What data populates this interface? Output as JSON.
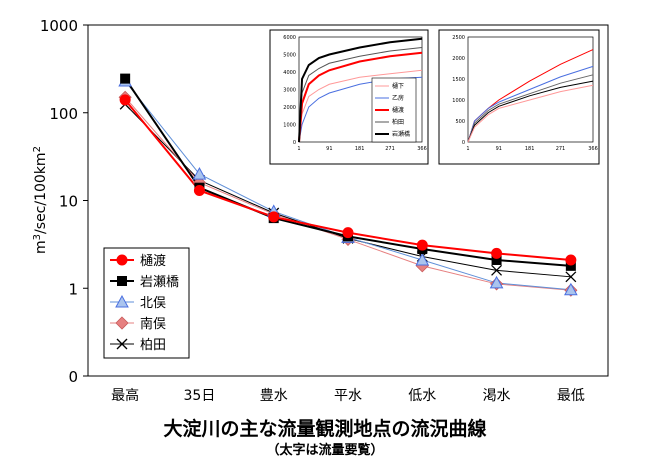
{
  "title": "大淀川の主な流量観測地点の流況曲線",
  "subtitle": "（太字は流量要覧）",
  "chart_data": [
    {
      "type": "line",
      "title": "大淀川の主な流量観測地点の流況曲線",
      "ylabel": "m3/sec/100km2",
      "ylabel_base": "m",
      "ylabel_sup1": "3",
      "ylabel_mid": "/sec/100km",
      "ylabel_sup2": "2",
      "yscale": "log",
      "ylim": [
        0.1,
        1000
      ],
      "ytick_values": [
        0.1,
        1,
        10,
        100,
        1000
      ],
      "ytick_labels": [
        "0",
        "1",
        "10",
        "100",
        "1000"
      ],
      "categories": [
        "最高",
        "35日",
        "豊水",
        "平水",
        "低水",
        "渇水",
        "最低"
      ],
      "grid": false,
      "legend_position": "lower-left",
      "series": [
        {
          "name": "樋渡",
          "color": "#ff0000",
          "marker": "circle",
          "line_width": 2,
          "values": [
            140,
            13,
            6.5,
            4.3,
            3.1,
            2.5,
            2.1
          ]
        },
        {
          "name": "岩瀬橋",
          "color": "#000000",
          "marker": "square",
          "line_width": 2,
          "values": [
            245,
            14,
            6.3,
            3.9,
            2.8,
            2.1,
            1.8
          ]
        },
        {
          "name": "北俣",
          "color": "#5f8fd8",
          "marker": "triangle",
          "line_width": 1,
          "values": [
            230,
            20,
            7.5,
            3.8,
            2.1,
            1.15,
            0.96
          ]
        },
        {
          "name": "南俣",
          "color": "#e68080",
          "marker": "diamond",
          "line_width": 1,
          "values": [
            150,
            16,
            7.0,
            3.6,
            1.8,
            1.12,
            0.95
          ]
        },
        {
          "name": "柏田",
          "color": "#000000",
          "marker": "x",
          "line_width": 1,
          "values": [
            125,
            17,
            7.2,
            3.7,
            2.3,
            1.6,
            1.35
          ]
        }
      ]
    },
    {
      "type": "line",
      "ytick_labels": [
        "0",
        "1000",
        "2000",
        "3000",
        "4000",
        "5000",
        "6000"
      ],
      "ylim": [
        0,
        6000
      ],
      "xtick_labels": [
        "1",
        "91",
        "181",
        "271",
        "366"
      ],
      "xlim": [
        1,
        366
      ],
      "series": [
        {
          "name": "樋下",
          "color": "#ff9999",
          "line_width": 1,
          "values": [
            [
              1,
              0
            ],
            [
              10,
              1600
            ],
            [
              30,
              2600
            ],
            [
              60,
              3000
            ],
            [
              91,
              3300
            ],
            [
              181,
              3700
            ],
            [
              271,
              3900
            ],
            [
              366,
              4100
            ]
          ]
        },
        {
          "name": "乙房",
          "color": "#4a6fe0",
          "line_width": 1,
          "values": [
            [
              1,
              0
            ],
            [
              10,
              1000
            ],
            [
              30,
              2000
            ],
            [
              60,
              2500
            ],
            [
              91,
              2800
            ],
            [
              181,
              3300
            ],
            [
              271,
              3600
            ],
            [
              366,
              3700
            ]
          ]
        },
        {
          "name": "樋渡",
          "color": "#ff0000",
          "line_width": 2,
          "values": [
            [
              1,
              0
            ],
            [
              10,
              2200
            ],
            [
              30,
              3300
            ],
            [
              60,
              3800
            ],
            [
              91,
              4100
            ],
            [
              181,
              4600
            ],
            [
              271,
              4900
            ],
            [
              366,
              5100
            ]
          ]
        },
        {
          "name": "柏田",
          "color": "#555555",
          "line_width": 1,
          "values": [
            [
              1,
              0
            ],
            [
              10,
              2800
            ],
            [
              30,
              3800
            ],
            [
              60,
              4200
            ],
            [
              91,
              4500
            ],
            [
              181,
              4900
            ],
            [
              271,
              5200
            ],
            [
              366,
              5400
            ]
          ]
        },
        {
          "name": "岩瀬橋",
          "color": "#000000",
          "line_width": 2,
          "values": [
            [
              1,
              0
            ],
            [
              10,
              3600
            ],
            [
              30,
              4400
            ],
            [
              60,
              4800
            ],
            [
              91,
              5000
            ],
            [
              181,
              5400
            ],
            [
              271,
              5700
            ],
            [
              366,
              5900
            ]
          ]
        }
      ]
    },
    {
      "type": "line",
      "ytick_labels": [
        "0",
        "500",
        "1000",
        "1500",
        "2000",
        "2500"
      ],
      "ylim": [
        0,
        2500
      ],
      "xtick_labels": [
        "1",
        "91",
        "181",
        "271",
        "366"
      ],
      "xlim": [
        1,
        366
      ],
      "series": [
        {
          "color": "#ff0000",
          "line_width": 1,
          "values": [
            [
              1,
              0
            ],
            [
              20,
              500
            ],
            [
              60,
              800
            ],
            [
              91,
              1000
            ],
            [
              181,
              1450
            ],
            [
              271,
              1850
            ],
            [
              366,
              2200
            ]
          ]
        },
        {
          "color": "#4a6fe0",
          "line_width": 1,
          "values": [
            [
              1,
              0
            ],
            [
              20,
              500
            ],
            [
              60,
              800
            ],
            [
              91,
              950
            ],
            [
              181,
              1250
            ],
            [
              271,
              1550
            ],
            [
              366,
              1800
            ]
          ]
        },
        {
          "color": "#666666",
          "line_width": 1,
          "values": [
            [
              1,
              0
            ],
            [
              20,
              450
            ],
            [
              60,
              750
            ],
            [
              91,
              900
            ],
            [
              181,
              1150
            ],
            [
              271,
              1400
            ],
            [
              366,
              1600
            ]
          ]
        },
        {
          "color": "#000000",
          "line_width": 1,
          "values": [
            [
              1,
              0
            ],
            [
              20,
              400
            ],
            [
              60,
              700
            ],
            [
              91,
              850
            ],
            [
              181,
              1100
            ],
            [
              271,
              1300
            ],
            [
              366,
              1450
            ]
          ]
        },
        {
          "color": "#ff9999",
          "line_width": 1,
          "values": [
            [
              1,
              0
            ],
            [
              20,
              350
            ],
            [
              60,
              650
            ],
            [
              91,
              800
            ],
            [
              181,
              1000
            ],
            [
              271,
              1200
            ],
            [
              366,
              1350
            ]
          ]
        }
      ]
    }
  ]
}
